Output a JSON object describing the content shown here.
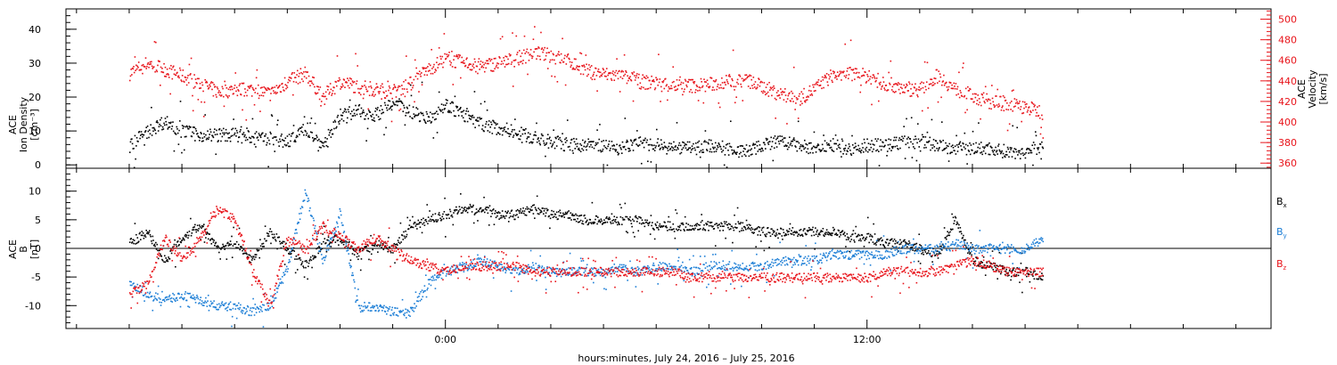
{
  "chart_data": [
    {
      "type": "scatter",
      "panel": "plasma",
      "left_axis": {
        "title_lines": [
          "ACE",
          "Ion Density",
          "[cm⁻³]"
        ],
        "range": [
          -1,
          46
        ],
        "ticks": [
          0,
          10,
          20,
          30,
          40
        ],
        "tick_labels": [
          "0",
          "10",
          "20",
          "30",
          "40"
        ],
        "color": "#000000"
      },
      "right_axis": {
        "title_lines": [
          "ACE",
          "Velocity",
          "[km/s]"
        ],
        "range": [
          355,
          510
        ],
        "ticks": [
          360,
          380,
          400,
          420,
          440,
          460,
          480,
          500
        ],
        "tick_labels": [
          "360",
          "380",
          "400",
          "420",
          "440",
          "460",
          "480",
          "500"
        ],
        "color": "#e8141b"
      },
      "series": [
        {
          "axis": "left",
          "color": "#000000",
          "x": [
            -9.0,
            -8.5,
            -8.0,
            -7.5,
            -7.0,
            -6.5,
            -6.0,
            -5.5,
            -5.0,
            -4.5,
            -4.0,
            -3.5,
            -3.0,
            -2.5,
            -2.0,
            -1.5,
            -1.0,
            -0.5,
            0.0,
            0.5,
            1.0,
            1.5,
            2.0,
            2.5,
            3.0,
            3.5,
            4.0,
            4.5,
            5.0,
            5.5,
            6.0,
            6.5,
            7.0,
            7.5,
            8.0,
            8.5,
            9.0,
            9.5,
            10.0,
            10.5,
            11.0,
            11.5,
            12.0,
            12.5,
            13.0,
            13.5,
            14.0,
            14.5,
            15.0,
            15.5,
            16.0,
            16.5,
            17.0
          ],
          "y": [
            6,
            10,
            13,
            10,
            9,
            9,
            9,
            8,
            8,
            7,
            11,
            6,
            15,
            16,
            15,
            18,
            16,
            14,
            18,
            15,
            12,
            11,
            10,
            8,
            7,
            6,
            6,
            6,
            5,
            7,
            6,
            5,
            5,
            6,
            5,
            4,
            6,
            7,
            6,
            5,
            6,
            5,
            6,
            6,
            7,
            7,
            6,
            5,
            5,
            5,
            4,
            4,
            6
          ]
        },
        {
          "axis": "right",
          "color": "#e8141b",
          "x": [
            -9.0,
            -8.5,
            -8.0,
            -7.5,
            -7.0,
            -6.5,
            -6.0,
            -5.5,
            -5.0,
            -4.5,
            -4.0,
            -3.5,
            -3.0,
            -2.5,
            -2.0,
            -1.5,
            -1.0,
            -0.5,
            0.0,
            0.5,
            1.0,
            1.5,
            2.0,
            2.5,
            3.0,
            3.5,
            4.0,
            4.5,
            5.0,
            5.5,
            6.0,
            6.5,
            7.0,
            7.5,
            8.0,
            8.5,
            9.0,
            9.5,
            10.0,
            10.5,
            11.0,
            11.5,
            12.0,
            12.5,
            13.0,
            13.5,
            14.0,
            14.5,
            15.0,
            15.5,
            16.0,
            16.5,
            17.0
          ],
          "y": [
            448,
            458,
            452,
            445,
            438,
            430,
            432,
            432,
            428,
            440,
            448,
            425,
            440,
            435,
            432,
            430,
            438,
            452,
            462,
            458,
            455,
            458,
            462,
            468,
            465,
            460,
            450,
            447,
            445,
            440,
            438,
            436,
            436,
            437,
            440,
            442,
            435,
            428,
            422,
            433,
            446,
            448,
            445,
            438,
            434,
            432,
            446,
            432,
            426,
            420,
            418,
            415,
            410
          ]
        }
      ]
    },
    {
      "type": "scatter",
      "panel": "magnetic-field",
      "left_axis": {
        "title_lines": [
          "ACE",
          "B",
          "[nT]"
        ],
        "range": [
          -14,
          14
        ],
        "ticks": [
          -10,
          -5,
          0,
          5,
          10
        ],
        "tick_labels": [
          "-10",
          "-5",
          "0",
          "5",
          "10"
        ],
        "color": "#000000"
      },
      "zero_line": true,
      "series": [
        {
          "name": "B",
          "subscript": "x",
          "color": "#000000",
          "x": [
            -9.0,
            -8.5,
            -8.0,
            -7.5,
            -7.0,
            -6.5,
            -6.0,
            -5.5,
            -5.0,
            -4.5,
            -4.0,
            -3.5,
            -3.0,
            -2.5,
            -2.0,
            -1.5,
            -1.0,
            -0.5,
            0.0,
            0.5,
            1.0,
            1.5,
            2.0,
            2.5,
            3.0,
            3.5,
            4.0,
            4.5,
            5.0,
            5.5,
            6.0,
            6.5,
            7.0,
            7.5,
            8.0,
            8.5,
            9.0,
            9.5,
            10.0,
            10.5,
            11.0,
            11.5,
            12.0,
            12.5,
            13.0,
            13.5,
            14.0,
            14.5,
            15.0,
            15.5,
            16.0,
            16.5,
            17.0
          ],
          "y": [
            1,
            3,
            -2,
            2,
            4,
            0,
            1,
            -2,
            3,
            0,
            -3,
            1,
            2,
            -1,
            1,
            0,
            4,
            5,
            6,
            7,
            7,
            6,
            6,
            7,
            6,
            6,
            5,
            5,
            5,
            5,
            4,
            4,
            4,
            4,
            4,
            4,
            3,
            3,
            3,
            3,
            3,
            2,
            2,
            1,
            1,
            0,
            -1,
            5,
            -2,
            -3,
            -4,
            -4,
            -5
          ]
        },
        {
          "name": "B",
          "subscript": "y",
          "color": "#1e7fd6",
          "x": [
            -9.0,
            -8.5,
            -8.0,
            -7.5,
            -7.0,
            -6.5,
            -6.0,
            -5.5,
            -5.0,
            -4.5,
            -4.0,
            -3.5,
            -3.0,
            -2.5,
            -2.0,
            -1.5,
            -1.0,
            -0.5,
            0.0,
            0.5,
            1.0,
            1.5,
            2.0,
            2.5,
            3.0,
            3.5,
            4.0,
            4.5,
            5.0,
            5.5,
            6.0,
            6.5,
            7.0,
            7.5,
            8.0,
            8.5,
            9.0,
            9.5,
            10.0,
            10.5,
            11.0,
            11.5,
            12.0,
            12.5,
            13.0,
            13.5,
            14.0,
            14.5,
            15.0,
            15.5,
            16.0,
            16.5,
            17.0
          ],
          "y": [
            -6,
            -8,
            -9,
            -8,
            -9,
            -10,
            -10,
            -11,
            -10,
            -3,
            10,
            -2,
            6,
            -10,
            -10,
            -11,
            -11,
            -6,
            -4,
            -3,
            -2,
            -3,
            -4,
            -3,
            -4,
            -4,
            -4,
            -4,
            -3,
            -4,
            -3,
            -3,
            -4,
            -3,
            -3,
            -3,
            -3,
            -2,
            -2,
            -2,
            -1,
            -1,
            -1,
            -1,
            0,
            0,
            0,
            1,
            0,
            0,
            0,
            0,
            2
          ]
        },
        {
          "name": "B",
          "subscript": "z",
          "color": "#e8141b",
          "x": [
            -9.0,
            -8.5,
            -8.0,
            -7.5,
            -7.0,
            -6.5,
            -6.0,
            -5.5,
            -5.0,
            -4.5,
            -4.0,
            -3.5,
            -3.0,
            -2.5,
            -2.0,
            -1.5,
            -1.0,
            -0.5,
            0.0,
            0.5,
            1.0,
            1.5,
            2.0,
            2.5,
            3.0,
            3.5,
            4.0,
            4.5,
            5.0,
            5.5,
            6.0,
            6.5,
            7.0,
            7.5,
            8.0,
            8.5,
            9.0,
            9.5,
            10.0,
            10.5,
            11.0,
            11.5,
            12.0,
            12.5,
            13.0,
            13.5,
            14.0,
            14.5,
            15.0,
            15.5,
            16.0,
            16.5,
            17.0
          ],
          "y": [
            -8,
            -6,
            2,
            -2,
            2,
            7,
            5,
            -4,
            -10,
            2,
            0,
            4,
            2,
            0,
            2,
            0,
            -2,
            -3,
            -4,
            -3,
            -3,
            -3,
            -3,
            -4,
            -4,
            -4,
            -4,
            -4,
            -4,
            -4,
            -4,
            -4,
            -5,
            -5,
            -5,
            -5,
            -5,
            -5,
            -5,
            -5,
            -5,
            -5,
            -5,
            -4,
            -4,
            -4,
            -4,
            -3,
            -2,
            -3,
            -4,
            -4,
            -4
          ]
        }
      ]
    }
  ],
  "x_axis": {
    "range": [
      -10.8,
      23.5
    ],
    "major_ticks": [
      0,
      12
    ],
    "major_labels": [
      "0:00",
      "12:00"
    ],
    "minor_step": 1.5,
    "label": "hours:minutes, July 24, 2016 – July 25, 2016"
  }
}
